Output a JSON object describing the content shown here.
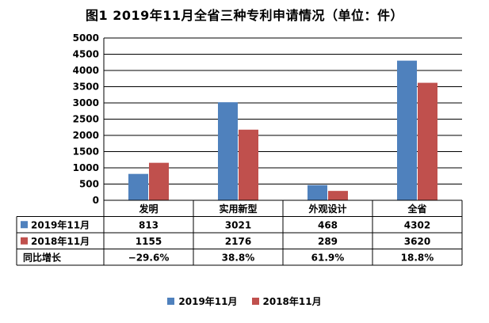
{
  "chart_data": {
    "type": "bar",
    "title": "图1 2019年11月全省三种专利申请情况（单位：件）",
    "categories": [
      "发明",
      "实用新型",
      "外观设计",
      "全省"
    ],
    "series": [
      {
        "name": "2019年11月",
        "values": [
          813,
          3021,
          468,
          4302
        ],
        "color": "#4f81bd"
      },
      {
        "name": "2018年11月",
        "values": [
          1155,
          2176,
          289,
          3620
        ],
        "color": "#c0504d"
      }
    ],
    "ylim": [
      0,
      5000
    ],
    "yticks": [
      0,
      500,
      1000,
      1500,
      2000,
      2500,
      3000,
      3500,
      4000,
      4500,
      5000
    ],
    "grid": true,
    "legend": "bottom",
    "table": {
      "rows": [
        {
          "label": "2019年11月",
          "marker": "#4f81bd",
          "cells": [
            "813",
            "3021",
            "468",
            "4302"
          ]
        },
        {
          "label": "2018年11月",
          "marker": "#c0504d",
          "cells": [
            "1155",
            "2176",
            "289",
            "3620"
          ]
        },
        {
          "label": "同比增长",
          "marker": "",
          "cells": [
            "−29.6%",
            "38.8%",
            "61.9%",
            "18.8%"
          ]
        }
      ]
    }
  }
}
